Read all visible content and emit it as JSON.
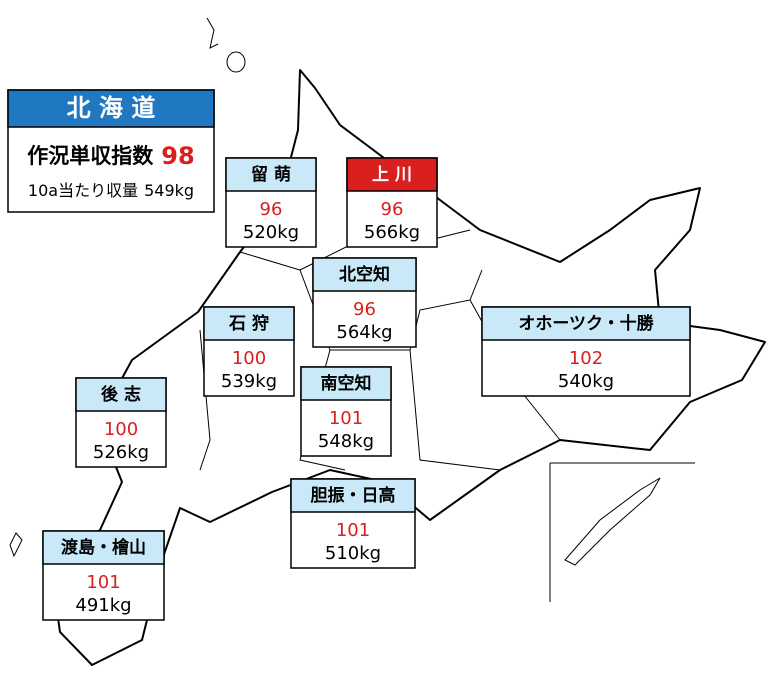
{
  "summary": {
    "title": "北 海 道",
    "color": "#1f78c1",
    "index_label": "作況単収指数",
    "index": 98,
    "yield_label": "10a当たり収量",
    "yield": "549kg"
  },
  "regions": [
    {
      "name": "留 萌",
      "index": 96,
      "yield": "520kg",
      "color": "#c9e9f8"
    },
    {
      "name": "上 川",
      "index": 96,
      "yield": "566kg",
      "color": "#d9201f"
    },
    {
      "name": "北空知",
      "index": 96,
      "yield": "564kg",
      "color": "#c9e9f8"
    },
    {
      "name": "石 狩",
      "index": 100,
      "yield": "539kg",
      "color": "#c9e9f8"
    },
    {
      "name": "オホーツク・十勝",
      "index": 102,
      "yield": "540kg",
      "color": "#c9e9f8"
    },
    {
      "name": "後 志",
      "index": 100,
      "yield": "526kg",
      "color": "#c9e9f8"
    },
    {
      "name": "南空知",
      "index": 101,
      "yield": "548kg",
      "color": "#c9e9f8"
    },
    {
      "name": "胆振・日高",
      "index": 101,
      "yield": "510kg",
      "color": "#c9e9f8"
    },
    {
      "name": "渡島・檜山",
      "index": 101,
      "yield": "491kg",
      "color": "#c9e9f8"
    }
  ]
}
